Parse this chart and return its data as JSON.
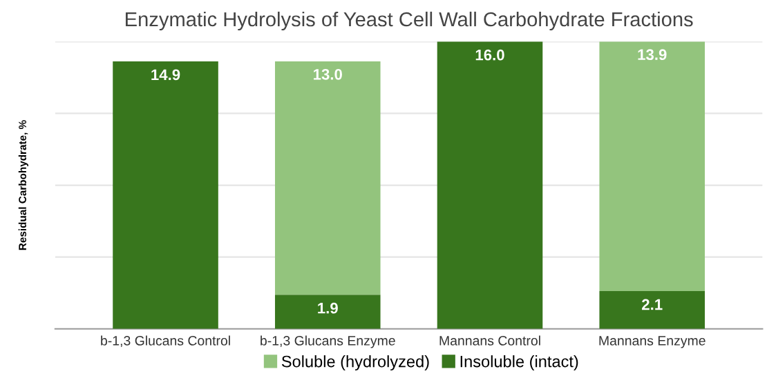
{
  "chart_data": {
    "type": "bar",
    "title": "Enzymatic Hydrolysis of Yeast Cell Wall Carbohydrate Fractions",
    "ylabel": "Residual Carbohydrate, %",
    "categories": [
      "b-1,3 Glucans Control",
      "b-1,3 Glucans Enzyme",
      "Mannans Control",
      "Mannans Enzyme"
    ],
    "stacked": true,
    "ylim": [
      0,
      16
    ],
    "grid": "y",
    "legend": "bottom",
    "series": [
      {
        "name": "Insoluble (intact)",
        "color": "#38761d",
        "values": [
          14.9,
          1.9,
          16.0,
          2.1
        ],
        "value_labels": [
          "14.9",
          "1.9",
          "16.0",
          "2.1"
        ]
      },
      {
        "name": "Soluble (hydrolyzed)",
        "color": "#93c47d",
        "values": [
          0,
          13.0,
          0,
          13.9
        ],
        "value_labels": [
          null,
          "13.0",
          null,
          "13.9"
        ]
      }
    ]
  }
}
